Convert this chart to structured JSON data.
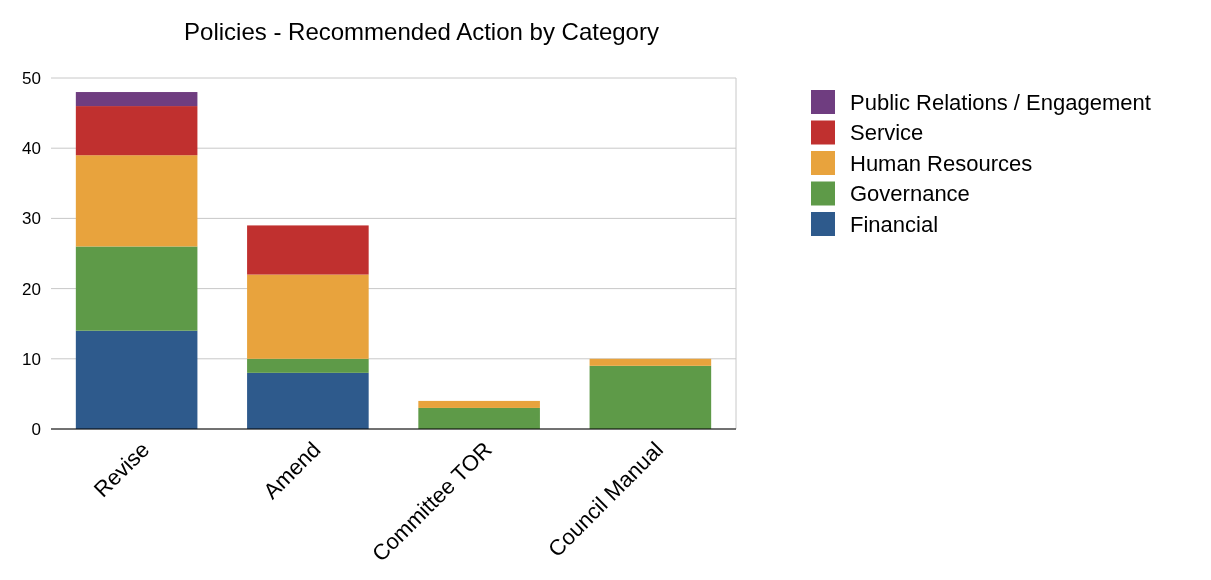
{
  "chart_data": {
    "type": "bar",
    "title": "Policies - Recommended Action by Category",
    "categories": [
      "Revise",
      "Amend",
      "Committee TOR",
      "Council Manual"
    ],
    "stacked": true,
    "series": [
      {
        "name": "Financial",
        "color": "#2e5a8c",
        "values": [
          14,
          8,
          0,
          0
        ]
      },
      {
        "name": "Governance",
        "color": "#5e9a48",
        "values": [
          12,
          2,
          3,
          9
        ]
      },
      {
        "name": "Human Resources",
        "color": "#e8a33d",
        "values": [
          13,
          12,
          1,
          1
        ]
      },
      {
        "name": "Service",
        "color": "#c0302f",
        "values": [
          7,
          7,
          0,
          0
        ]
      },
      {
        "name": "Public Relations / Engagement",
        "color": "#6f3d80",
        "values": [
          2,
          0,
          0,
          0
        ]
      }
    ],
    "ylim": [
      0,
      50
    ],
    "yticks": [
      0,
      10,
      20,
      30,
      40,
      50
    ],
    "grid": "y",
    "legend": "top right"
  }
}
